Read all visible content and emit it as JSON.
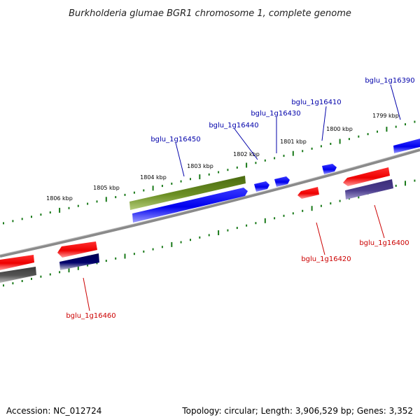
{
  "title": "Burkholderia glumae BGR1 chromosome 1, complete genome",
  "footer": {
    "accession": "Accession: NC_012724",
    "summary": "Topology: circular; Length: 3,906,529 bp; Genes: 3,352"
  },
  "colors": {
    "forward_gene": "#0000ee",
    "reverse_gene": "#ee0000",
    "forward_label": "#0000aa",
    "reverse_label": "#cc0000",
    "olive_feature": "#6b8e23",
    "navy_feature": "#00006b",
    "slate_feature": "#4b3c8c",
    "gray_feature": "#555555",
    "backbone": "#808080",
    "ticks": "#1a7a1a"
  },
  "tick_labels": [
    "1806 kbp",
    "1805 kbp",
    "1804 kbp",
    "1803 kbp",
    "1802 kbp",
    "1801 kbp",
    "1800 kbp",
    "1799 kbp"
  ],
  "genes": [
    {
      "id": "bglu_1g16390",
      "strand": "forward"
    },
    {
      "id": "bglu_1g16400",
      "strand": "reverse"
    },
    {
      "id": "bglu_1g16410",
      "strand": "forward"
    },
    {
      "id": "bglu_1g16420",
      "strand": "reverse"
    },
    {
      "id": "bglu_1g16430",
      "strand": "forward"
    },
    {
      "id": "bglu_1g16440",
      "strand": "forward"
    },
    {
      "id": "bglu_1g16450",
      "strand": "forward"
    },
    {
      "id": "bglu_1g16460",
      "strand": "reverse"
    }
  ]
}
